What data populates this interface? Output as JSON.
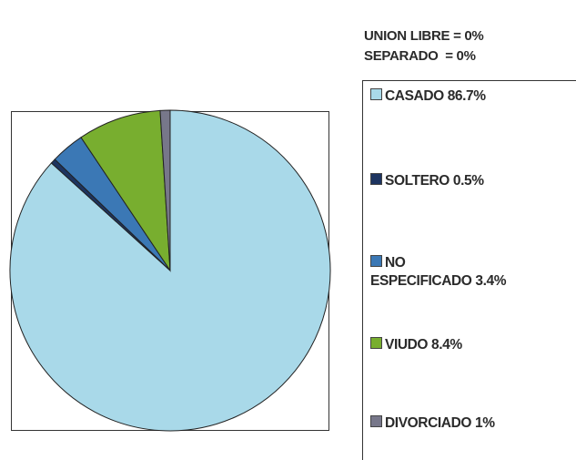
{
  "chart_data": {
    "type": "pie",
    "annotations": [
      "UNION LIBRE = 0%",
      "SEPARADO  = 0%"
    ],
    "categories": [
      "CASADO",
      "SOLTERO",
      "NO ESPECIFICADO",
      "VIUDO",
      "DIVORCIADO"
    ],
    "values": [
      86.7,
      0.5,
      3.4,
      8.4,
      1
    ],
    "value_labels": [
      "86.7%",
      "0.5%",
      "3.4%",
      "8.4%",
      "1%"
    ],
    "colors": [
      "#a9d9e9",
      "#1d3460",
      "#3b78b5",
      "#78ae2f",
      "#77778a"
    ],
    "legend": "right"
  }
}
